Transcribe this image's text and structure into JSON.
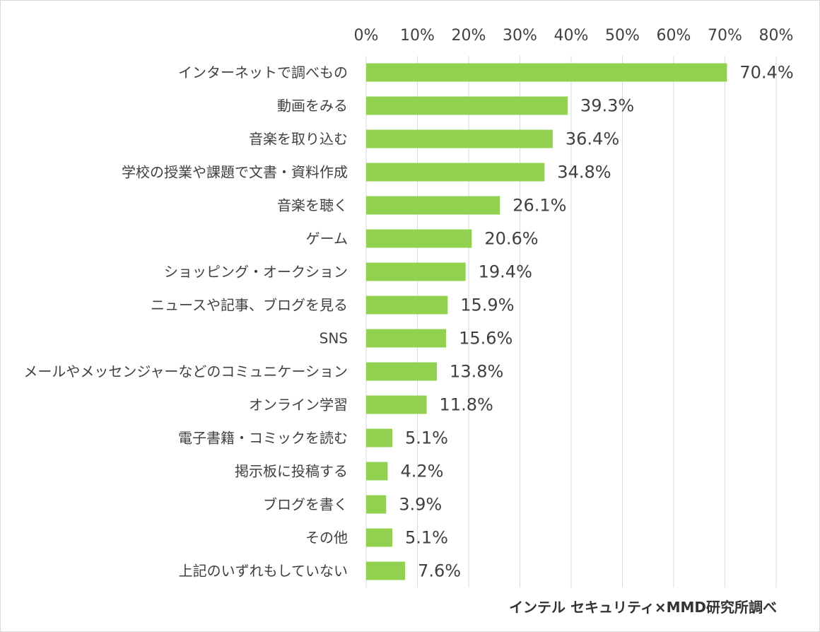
{
  "chart_data": {
    "type": "bar",
    "orientation": "horizontal",
    "categories": [
      "インターネットで調べもの",
      "動画をみる",
      "音楽を取り込む",
      "学校の授業や課題で文書・資料作成",
      "音楽を聴く",
      "ゲーム",
      "ショッピング・オークション",
      "ニュースや記事、ブログを見る",
      "SNS",
      "メールやメッセンジャーなどのコミュニケーション",
      "オンライン学習",
      "電子書籍・コミックを読む",
      "掲示板に投稿する",
      "ブログを書く",
      "その他",
      "上記のいずれもしていない"
    ],
    "values": [
      70.4,
      39.3,
      36.4,
      34.8,
      26.1,
      20.6,
      19.4,
      15.9,
      15.6,
      13.8,
      11.8,
      5.1,
      4.2,
      3.9,
      5.1,
      7.6
    ],
    "value_labels": [
      "70.4%",
      "39.3%",
      "36.4%",
      "34.8%",
      "26.1%",
      "20.6%",
      "19.4%",
      "15.9%",
      "15.6%",
      "13.8%",
      "11.8%",
      "5.1%",
      "4.2%",
      "3.9%",
      "5.1%",
      "7.6%"
    ],
    "xlim": [
      0,
      80
    ],
    "x_ticks": [
      0,
      10,
      20,
      30,
      40,
      50,
      60,
      70,
      80
    ],
    "x_tick_labels": [
      "0%",
      "10%",
      "20%",
      "30%",
      "40%",
      "50%",
      "60%",
      "70%",
      "80%"
    ],
    "axis_position": "top",
    "grid": true,
    "title": "",
    "xlabel": "",
    "ylabel": "",
    "bar_color": "#92d050",
    "grid_color": "#d9d9d9",
    "text_color": "#404040"
  },
  "source_note": "インテル セキュリティ×MMD研究所調べ"
}
